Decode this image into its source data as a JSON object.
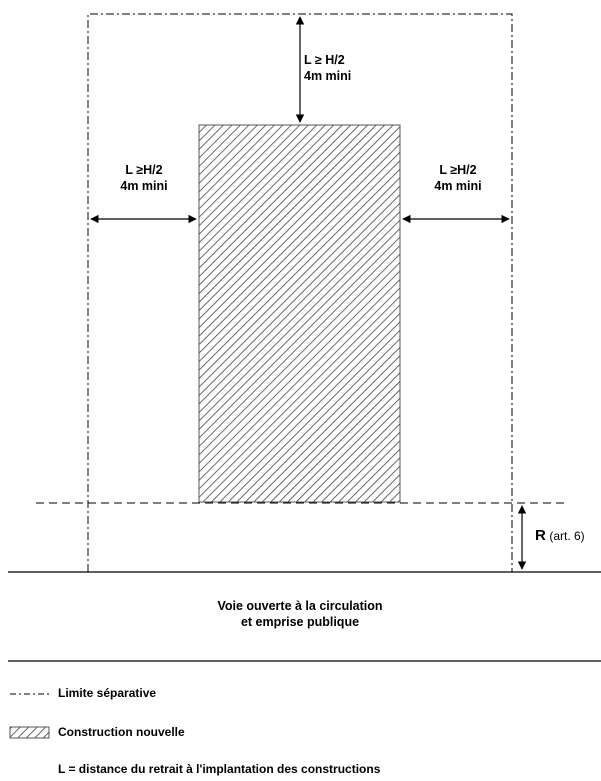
{
  "labels": {
    "top_line1": "L ≥ H/2",
    "top_line2": "4m mini",
    "left_line1": "L ≥H/2",
    "left_line2": "4m mini",
    "right_line1": "L ≥H/2",
    "right_line2": "4m mini",
    "r_letter": "R",
    "r_note": "(art. 6)"
  },
  "road": {
    "line1": "Voie ouverte à la circulation",
    "line2": "et emprise publique"
  },
  "legend": {
    "separative": "Limite séparative",
    "construction": "Construction nouvelle",
    "definition": "L = distance du retrait à l'implantation des constructions"
  }
}
